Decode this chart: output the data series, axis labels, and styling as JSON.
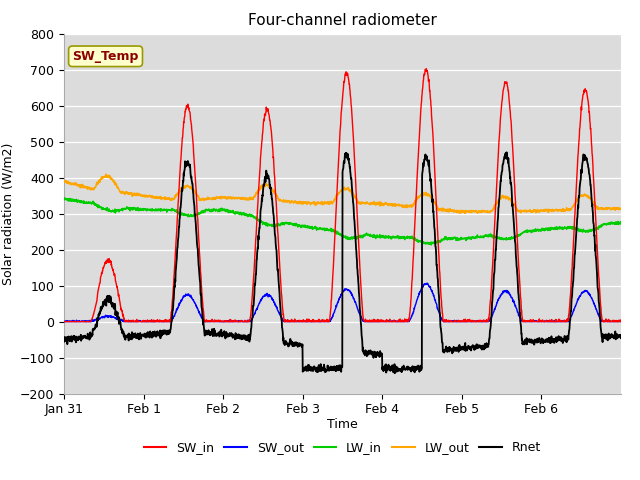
{
  "title": "Four-channel radiometer",
  "ylabel": "Solar radiation (W/m2)",
  "xlabel": "Time",
  "ylim": [
    -200,
    800
  ],
  "yticks": [
    -200,
    -100,
    0,
    100,
    200,
    300,
    400,
    500,
    600,
    700,
    800
  ],
  "bg_color": "#dcdcdc",
  "annotation_text": "SW_Temp",
  "annotation_bg": "#ffffcc",
  "annotation_border": "#999900",
  "annotation_text_color": "#8b0000",
  "colors": {
    "SW_in": "#ff0000",
    "SW_out": "#0000ff",
    "LW_in": "#00cc00",
    "LW_out": "#ffa500",
    "Rnet": "#000000"
  },
  "tick_positions": [
    0,
    24,
    48,
    72,
    96,
    120,
    144
  ],
  "tick_labels": [
    "Jan 31",
    "Feb 1",
    "Feb 2",
    "Feb 3",
    "Feb 4",
    "Feb 5",
    "Feb 6"
  ],
  "xlim": [
    0,
    168
  ],
  "n_points": 2016,
  "sw_in_peaks": [
    170,
    600,
    590,
    690,
    700,
    665,
    645
  ],
  "sw_out_peaks": [
    15,
    75,
    75,
    90,
    105,
    85,
    85
  ],
  "lw_in_nodes_x": [
    0,
    24,
    48,
    72,
    96,
    120,
    144,
    168
  ],
  "lw_in_nodes_y": [
    340,
    310,
    310,
    265,
    235,
    230,
    255,
    275
  ],
  "lw_out_nodes_x": [
    0,
    8,
    24,
    36,
    48,
    60,
    72,
    96,
    120,
    144,
    168
  ],
  "lw_out_nodes_y": [
    390,
    370,
    350,
    335,
    345,
    340,
    330,
    328,
    305,
    308,
    315
  ],
  "rnet_night_base": -60,
  "rnet_feb3_dip": -130,
  "rnet_feb4_dip": -130
}
